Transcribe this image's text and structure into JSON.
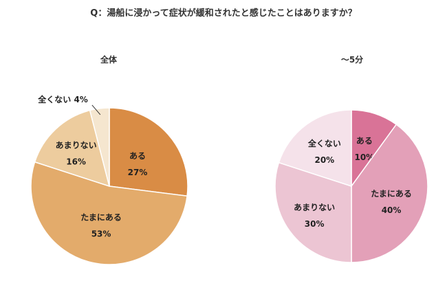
{
  "question": "Q：湯船に浸かって症状が緩和されたと感じたことはありますか？",
  "chart_data": [
    {
      "type": "pie",
      "title": "全体",
      "slices": [
        {
          "label": "ある",
          "value": 27,
          "value_text": "27%",
          "color": "#d98c45"
        },
        {
          "label": "たまにある",
          "value": 53,
          "value_text": "53%",
          "color": "#e3ab6b"
        },
        {
          "label": "あまりない",
          "value": 16,
          "value_text": "16%",
          "color": "#edcc9e"
        },
        {
          "label": "全くない",
          "value": 4,
          "value_text": "4%",
          "color": "#f5e6cf"
        }
      ]
    },
    {
      "type": "pie",
      "title": "～5分",
      "slices": [
        {
          "label": "ある",
          "value": 10,
          "value_text": "10%",
          "color": "#d97397"
        },
        {
          "label": "たまにある",
          "value": 40,
          "value_text": "40%",
          "color": "#e3a0b8"
        },
        {
          "label": "あまりない",
          "value": 30,
          "value_text": "30%",
          "color": "#ecc5d3"
        },
        {
          "label": "全くない",
          "value": 20,
          "value_text": "20%",
          "color": "#f5e2ea"
        }
      ]
    }
  ]
}
